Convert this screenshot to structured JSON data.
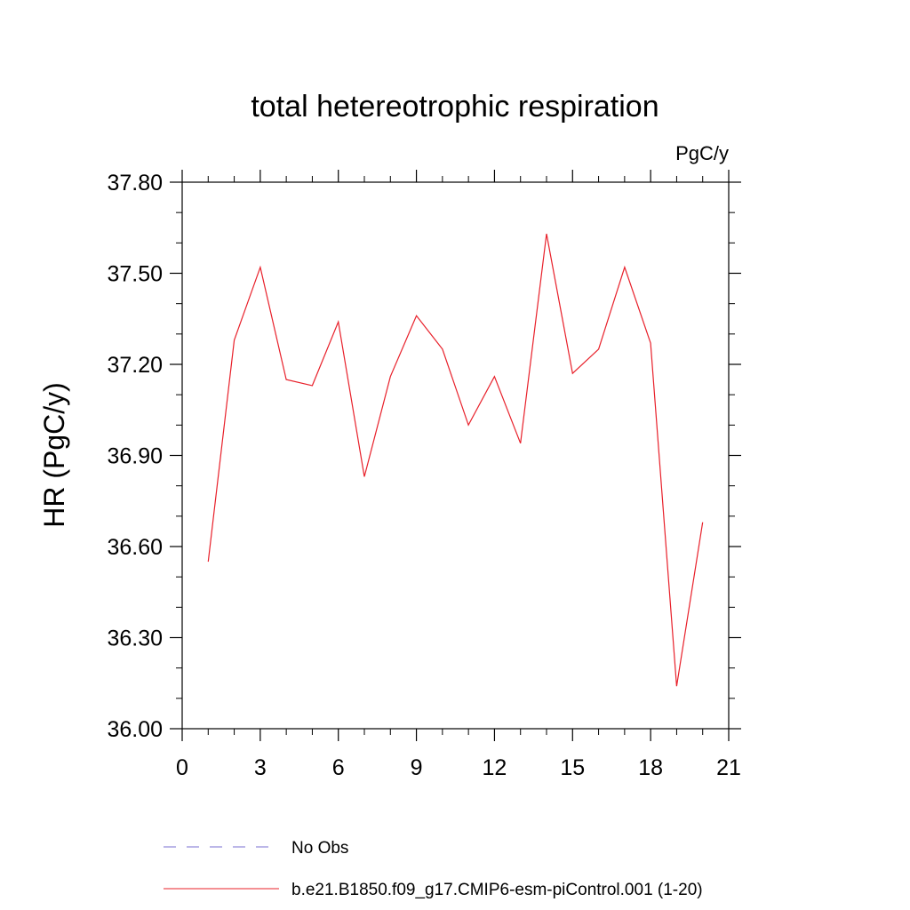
{
  "chart_data": {
    "type": "line",
    "title": "total hetereotrophic respiration",
    "units_label": "PgC/y",
    "xlabel": "",
    "ylabel": "HR  (PgC/y)",
    "xlim": [
      0,
      21
    ],
    "ylim": [
      36.0,
      37.8
    ],
    "xticks": [
      0,
      3,
      6,
      9,
      12,
      15,
      18,
      21
    ],
    "yticks": [
      "36.00",
      "36.30",
      "36.60",
      "36.90",
      "37.20",
      "37.50",
      "37.80"
    ],
    "grid": false,
    "legend_position": "bottom",
    "series": [
      {
        "name": "b.e21.B1850.f09_g17.CMIP6-esm-piControl.001 (1-20)",
        "color": "#e8202a",
        "style": "solid",
        "x": [
          1,
          2,
          3,
          4,
          5,
          6,
          7,
          8,
          9,
          10,
          11,
          12,
          13,
          14,
          15,
          16,
          17,
          18,
          19,
          20
        ],
        "y": [
          36.55,
          37.28,
          37.52,
          37.15,
          37.13,
          37.34,
          36.83,
          37.16,
          37.36,
          37.25,
          37.0,
          37.16,
          36.94,
          37.63,
          37.17,
          37.25,
          37.52,
          37.27,
          36.14,
          36.68
        ]
      }
    ],
    "legend": [
      {
        "label": "No Obs",
        "color": "#7a6fd0",
        "style": "dashed"
      },
      {
        "label": "b.e21.B1850.f09_g17.CMIP6-esm-piControl.001 (1-20)",
        "color": "#e8202a",
        "style": "solid"
      }
    ]
  }
}
